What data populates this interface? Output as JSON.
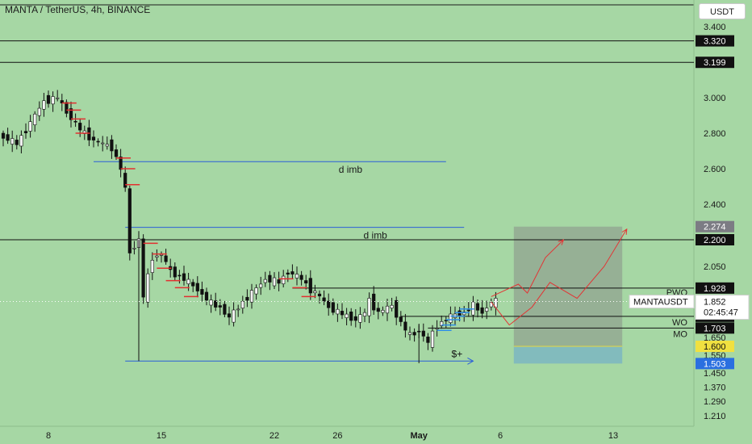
{
  "header": {
    "ticker": "MANTA / TetherUS, 4h, BINANCE",
    "currency_button": "USDT"
  },
  "chart_data": {
    "type": "candlestick",
    "price_axis": {
      "min": 1.15,
      "max": 3.55,
      "ticks": [
        "3.400",
        "3.000",
        "2.800",
        "2.600",
        "2.400",
        "2.050",
        "1.650",
        "1.550",
        "1.450",
        "1.370",
        "1.290",
        "1.210"
      ],
      "tick_values": [
        3.4,
        3.0,
        2.8,
        2.6,
        2.4,
        2.05,
        1.65,
        1.55,
        1.45,
        1.37,
        1.29,
        1.21
      ]
    },
    "time_axis": {
      "ticks": [
        "8",
        "15",
        "22",
        "26",
        "May",
        "6",
        "13"
      ],
      "tick_bars": [
        10,
        35,
        60,
        74,
        92,
        110,
        135
      ],
      "bar_count": 152
    },
    "horizontal_levels": [
      {
        "price": 3.32,
        "label": "3.320",
        "color": "#111111"
      },
      {
        "price": 3.199,
        "label": "3.199",
        "color": "#111111"
      },
      {
        "price": 2.2,
        "label": "2.200",
        "color": "#111111"
      },
      {
        "price": 1.928,
        "label": "1.928",
        "color": "#111111",
        "tag": "PWO",
        "from_bar": 64
      },
      {
        "price": 1.769,
        "label": "1.769",
        "color": "#111111",
        "tag": "WO",
        "from_bar": 88
      },
      {
        "price": 1.703,
        "label": "1.703",
        "color": "#111111",
        "tag": "MO",
        "from_bar": 94
      }
    ],
    "price_tags": [
      {
        "label": "2.274",
        "price": 2.274,
        "bg": "#7c7c84",
        "fg": "#ffffff"
      },
      {
        "label": "1.600",
        "price": 1.6,
        "bg": "#f0e040",
        "fg": "#111111"
      },
      {
        "label": "1.503",
        "price": 1.503,
        "bg": "#2a6fe0",
        "fg": "#ffffff"
      }
    ],
    "current_price": {
      "symbol": "MANTAUSDT",
      "price": "1.852",
      "countdown": "02:45:47",
      "value": 1.852
    },
    "annotations": [
      {
        "text": "d imb",
        "price": 2.64,
        "from_bar": 20,
        "to_bar": 98
      },
      {
        "text": "d imb",
        "price": 2.27,
        "from_bar": 27,
        "to_bar": 102
      },
      {
        "text": "$+",
        "price": 1.517,
        "from_bar": 27,
        "to_bar": 104
      }
    ],
    "position_box": {
      "from_bar": 113,
      "to_bar": 137,
      "target": 2.274,
      "entry": 1.6,
      "stop": 1.503
    },
    "projections": [
      [
        [
          108,
          1.86
        ],
        [
          114,
          1.95
        ],
        [
          119,
          1.73
        ],
        [
          128,
          2.2
        ],
        [
          125,
          2.16
        ],
        [
          127,
          2.17
        ],
        [
          128,
          2.2
        ]
      ],
      [
        [
          111,
          2.0
        ],
        [
          115,
          1.87
        ],
        [
          124,
          2.05
        ],
        [
          130,
          1.88
        ],
        [
          138,
          2.16
        ],
        [
          144,
          2.26
        ],
        [
          146,
          2.27
        ]
      ],
      [
        [
          108,
          1.88
        ],
        [
          114,
          1.7
        ],
        [
          120,
          1.86
        ],
        [
          125,
          1.96
        ],
        [
          130,
          1.86
        ],
        [
          137,
          2.0
        ],
        [
          142,
          2.19
        ],
        [
          146,
          2.26
        ]
      ]
    ],
    "series": [
      {
        "name": "",
        "anchors": [
          [
            0,
            2.78
          ],
          [
            3,
            2.74
          ],
          [
            6,
            2.86
          ],
          [
            9,
            2.98
          ],
          [
            12,
            3.0
          ],
          [
            14,
            2.92
          ],
          [
            17,
            2.82
          ],
          [
            20,
            2.76
          ],
          [
            24,
            2.72
          ],
          [
            26,
            2.6
          ],
          [
            27,
            2.48
          ],
          [
            28,
            2.13
          ],
          [
            30,
            2.2
          ],
          [
            31,
            1.88
          ],
          [
            33,
            2.1
          ],
          [
            35,
            2.12
          ],
          [
            37,
            2.02
          ],
          [
            40,
            1.98
          ],
          [
            43,
            1.92
          ],
          [
            46,
            1.84
          ],
          [
            48,
            1.82
          ],
          [
            50,
            1.76
          ],
          [
            53,
            1.85
          ],
          [
            55,
            1.9
          ],
          [
            58,
            1.98
          ],
          [
            61,
            1.96
          ],
          [
            63,
            2.02
          ],
          [
            66,
            1.98
          ],
          [
            68,
            1.92
          ],
          [
            70,
            1.88
          ],
          [
            72,
            1.82
          ],
          [
            75,
            1.78
          ],
          [
            78,
            1.75
          ],
          [
            80,
            1.79
          ],
          [
            81,
            1.86
          ],
          [
            83,
            1.79
          ],
          [
            86,
            1.83
          ],
          [
            88,
            1.73
          ],
          [
            90,
            1.66
          ],
          [
            92,
            1.69
          ],
          [
            94,
            1.62
          ],
          [
            96,
            1.72
          ],
          [
            99,
            1.77
          ],
          [
            102,
            1.79
          ],
          [
            104,
            1.83
          ],
          [
            106,
            1.79
          ],
          [
            108,
            1.85
          ],
          [
            109,
            1.852
          ]
        ]
      }
    ]
  }
}
